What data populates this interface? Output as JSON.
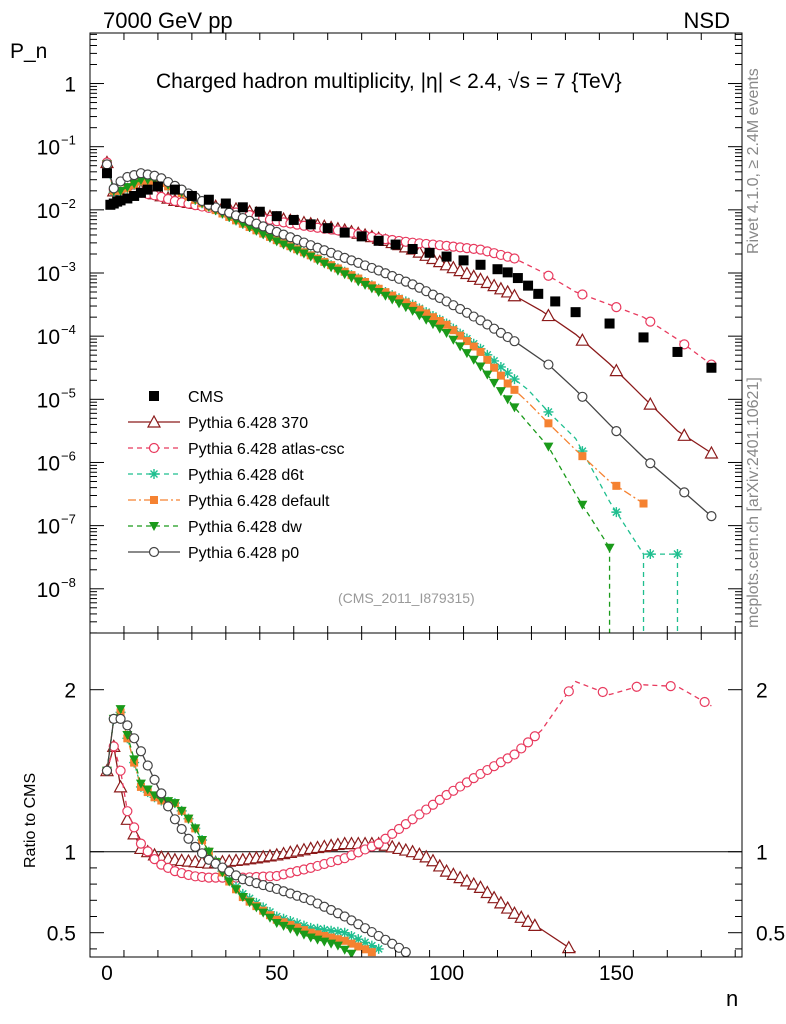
{
  "header": {
    "left": "7000 GeV pp",
    "right": "NSD"
  },
  "side_labels": {
    "rivet": "Rivet 4.1.0, ≥ 2.4M events",
    "mcplots": "mcplots.cern.ch [arXiv:2401.10621]"
  },
  "chart_data": {
    "type": "scatter",
    "title": "Charged hadron multiplicity, |η| < 2.4, √s = 7 {TeV}",
    "analysis_tag": "(CMS_2011_I879315)",
    "xlabel": "n",
    "ylabel": "P_n",
    "ratio_ylabel": "Ratio to CMS",
    "xlim": [
      -5,
      187
    ],
    "ylim_log10": [
      -8.7,
      0.8
    ],
    "ratio_ylim": [
      0.35,
      2.35
    ],
    "x_ticks": [
      "0",
      "50",
      "100",
      "150"
    ],
    "y_ticks": [
      "1",
      "10^-1",
      "10^-2",
      "10^-3",
      "10^-4",
      "10^-5",
      "10^-6",
      "10^-7",
      "10^-8"
    ],
    "ratio_ticks": [
      "0.5",
      "1",
      "2"
    ],
    "legend_position": "lower-left",
    "cms": {
      "name": "CMS",
      "x": [
        0,
        1,
        2,
        3,
        4,
        6,
        8,
        10,
        12,
        15,
        20,
        25,
        30,
        35,
        40,
        45,
        50,
        55,
        60,
        65,
        70,
        75,
        80,
        85,
        90,
        95,
        100,
        105,
        110,
        115,
        118,
        121,
        124,
        127,
        132,
        138,
        148,
        158,
        168,
        178
      ],
      "log10": [
        -1.42,
        -1.92,
        -1.9,
        -1.87,
        -1.85,
        -1.82,
        -1.78,
        -1.73,
        -1.68,
        -1.63,
        -1.68,
        -1.78,
        -1.84,
        -1.9,
        -1.96,
        -2.03,
        -2.1,
        -2.16,
        -2.23,
        -2.29,
        -2.36,
        -2.42,
        -2.49,
        -2.55,
        -2.62,
        -2.68,
        -2.74,
        -2.8,
        -2.87,
        -2.94,
        -2.99,
        -3.08,
        -3.2,
        -3.33,
        -3.45,
        -3.62,
        -3.8,
        -4.02,
        -4.25,
        -4.5
      ]
    },
    "series": [
      {
        "name": "Pythia 6.428 370",
        "color": "#8b1a1a",
        "dash": "",
        "marker": "triangle-open",
        "x": [
          0,
          2,
          4,
          6,
          10,
          15,
          20,
          30,
          40,
          50,
          60,
          70,
          80,
          90,
          100,
          110,
          118,
          124,
          128,
          138,
          148,
          158,
          168,
          178
        ],
        "log10": [
          -1.25,
          -1.7,
          -1.75,
          -1.68,
          -1.69,
          -1.76,
          -1.85,
          -1.93,
          -2.0,
          -2.13,
          -2.22,
          -2.32,
          -2.45,
          -2.62,
          -2.87,
          -3.1,
          -3.3,
          -3.48,
          -3.6,
          -3.97,
          -4.44,
          -4.97,
          -5.5,
          -5.85
        ]
      },
      {
        "name": "Pythia 6.428 atlas-csc",
        "color": "#e83a5e",
        "dash": "5,4",
        "marker": "circle-open",
        "x": [
          0,
          2,
          4,
          6,
          10,
          15,
          20,
          30,
          40,
          50,
          60,
          70,
          80,
          90,
          100,
          110,
          120,
          128,
          138,
          148,
          158,
          168,
          178
        ],
        "log10": [
          -1.25,
          -1.68,
          -1.73,
          -1.74,
          -1.73,
          -1.78,
          -1.86,
          -1.97,
          -2.06,
          -2.18,
          -2.27,
          -2.34,
          -2.45,
          -2.52,
          -2.57,
          -2.63,
          -2.77,
          -2.98,
          -3.3,
          -3.5,
          -3.7,
          -4.05,
          -4.45
        ]
      },
      {
        "name": "Pythia 6.428 d6t",
        "color": "#1fbf8f",
        "dash": "5,4",
        "marker": "star",
        "x": [
          0,
          2,
          4,
          6,
          10,
          15,
          20,
          30,
          40,
          50,
          60,
          70,
          80,
          90,
          100,
          110,
          120,
          124,
          130,
          138,
          148,
          158,
          168
        ],
        "log10": [
          -1.3,
          -1.72,
          -1.72,
          -1.66,
          -1.55,
          -1.55,
          -1.68,
          -1.95,
          -2.22,
          -2.48,
          -2.72,
          -2.98,
          -3.25,
          -3.5,
          -3.8,
          -4.2,
          -4.68,
          -4.85,
          -5.2,
          -5.62,
          -6.62,
          -7.45,
          -7.45
        ]
      },
      {
        "name": "Pythia 6.428 default",
        "color": "#f58231",
        "dash": "8,3,2,3",
        "marker": "square",
        "x": [
          0,
          2,
          4,
          6,
          10,
          15,
          20,
          30,
          40,
          50,
          60,
          70,
          80,
          90,
          100,
          110,
          118,
          124,
          130,
          138,
          148,
          158
        ],
        "log10": [
          -1.28,
          -1.7,
          -1.7,
          -1.66,
          -1.55,
          -1.55,
          -1.68,
          -1.95,
          -2.22,
          -2.48,
          -2.72,
          -2.98,
          -3.25,
          -3.52,
          -3.82,
          -4.25,
          -4.75,
          -5.05,
          -5.38,
          -5.8,
          -6.3,
          -6.65
        ]
      },
      {
        "name": "Pythia 6.428 dw",
        "color": "#1a9a1a",
        "dash": "5,4",
        "marker": "triangle-down",
        "x": [
          0,
          2,
          4,
          6,
          10,
          15,
          20,
          30,
          40,
          50,
          60,
          70,
          80,
          90,
          100,
          110,
          118,
          124,
          130,
          138,
          148
        ],
        "log10": [
          -1.28,
          -1.7,
          -1.7,
          -1.64,
          -1.53,
          -1.52,
          -1.66,
          -1.95,
          -2.22,
          -2.5,
          -2.74,
          -3.02,
          -3.3,
          -3.6,
          -3.95,
          -4.48,
          -5.0,
          -5.38,
          -5.75,
          -6.5,
          -7.35
        ]
      },
      {
        "name": "Pythia 6.428 p0",
        "color": "#444444",
        "dash": "",
        "marker": "circle-open",
        "x": [
          0,
          2,
          4,
          6,
          10,
          15,
          20,
          30,
          40,
          50,
          60,
          70,
          80,
          90,
          100,
          110,
          120,
          130,
          138,
          148,
          158,
          168,
          178
        ],
        "log10": [
          -1.28,
          -1.66,
          -1.55,
          -1.48,
          -1.42,
          -1.47,
          -1.62,
          -1.92,
          -2.13,
          -2.35,
          -2.56,
          -2.76,
          -2.96,
          -3.18,
          -3.45,
          -3.75,
          -4.08,
          -4.45,
          -4.85,
          -5.4,
          -5.92,
          -6.38,
          -6.85
        ]
      }
    ],
    "ratio": [
      {
        "x": [
          0,
          2,
          4,
          6,
          10,
          15,
          20,
          25,
          30,
          40,
          50,
          60,
          70,
          80,
          90,
          95,
          100,
          110,
          120,
          128,
          138
        ],
        "y": [
          1.5,
          1.65,
          1.4,
          1.2,
          1.02,
          0.97,
          0.95,
          0.94,
          0.93,
          0.95,
          0.98,
          1.02,
          1.05,
          1.05,
          1.0,
          0.96,
          0.88,
          0.78,
          0.62,
          0.52,
          0.38
        ]
      },
      {
        "x": [
          0,
          2,
          4,
          6,
          10,
          15,
          20,
          25,
          30,
          40,
          50,
          60,
          70,
          80,
          90,
          100,
          110,
          120,
          128,
          138,
          148,
          158,
          168,
          178
        ],
        "y": [
          1.5,
          1.65,
          1.5,
          1.25,
          1.05,
          0.93,
          0.88,
          0.85,
          0.84,
          0.84,
          0.85,
          0.9,
          0.96,
          1.05,
          1.2,
          1.35,
          1.48,
          1.6,
          1.75,
          2.05,
          1.97,
          2.03,
          2.02,
          1.9
        ]
      },
      {
        "x": [
          0,
          2,
          4,
          6,
          10,
          15,
          20,
          25,
          30,
          35,
          40,
          50,
          60,
          70,
          75,
          80
        ],
        "y": [
          1.5,
          1.82,
          1.86,
          1.7,
          1.4,
          1.32,
          1.3,
          1.18,
          1.0,
          0.85,
          0.74,
          0.6,
          0.53,
          0.5,
          0.45,
          0.4
        ]
      },
      {
        "x": [
          0,
          2,
          4,
          6,
          10,
          15,
          20,
          25,
          30,
          35,
          40,
          50,
          60,
          70,
          78
        ],
        "y": [
          1.5,
          1.82,
          1.86,
          1.7,
          1.4,
          1.32,
          1.3,
          1.18,
          1.0,
          0.84,
          0.72,
          0.58,
          0.5,
          0.45,
          0.38
        ]
      },
      {
        "x": [
          0,
          2,
          4,
          6,
          10,
          15,
          20,
          25,
          30,
          35,
          40,
          50,
          60,
          68,
          72
        ],
        "y": [
          1.5,
          1.82,
          1.88,
          1.72,
          1.42,
          1.33,
          1.3,
          1.18,
          1.0,
          0.84,
          0.72,
          0.56,
          0.47,
          0.42,
          0.37
        ]
      },
      {
        "x": [
          0,
          2,
          4,
          6,
          8,
          10,
          15,
          20,
          25,
          30,
          40,
          50,
          60,
          70,
          80,
          85,
          88
        ],
        "y": [
          1.5,
          1.82,
          1.82,
          1.78,
          1.7,
          1.62,
          1.4,
          1.2,
          1.05,
          0.95,
          0.83,
          0.77,
          0.7,
          0.6,
          0.48,
          0.42,
          0.38
        ]
      }
    ]
  }
}
